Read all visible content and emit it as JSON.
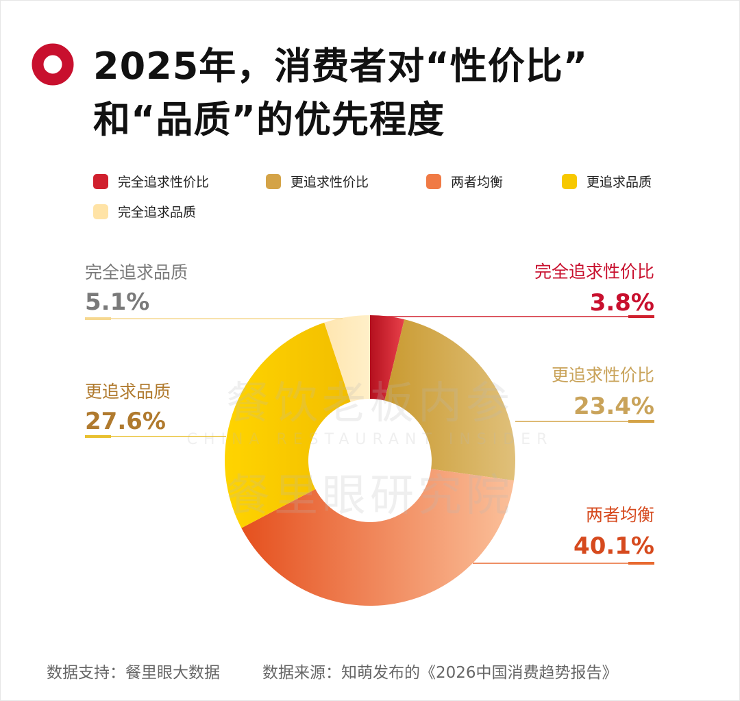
{
  "title": {
    "line1": "2025年，消费者对“性价比”",
    "line2": "和“品质”的优先程度"
  },
  "colors": {
    "accent": "#C8102E",
    "label_red": "#C8102E",
    "label_gold": "#C9A35A",
    "label_orange": "#D64A1E",
    "label_brown": "#B07A2E",
    "label_gray": "#7A7A7A"
  },
  "watermark": {
    "line1": "餐饮老板内参",
    "line2": "CHINA RESTAURANT INSIDER",
    "line3": "餐里眼研究院"
  },
  "chart_data": {
    "type": "pie",
    "donut": true,
    "unit": "%",
    "legend_position": "top",
    "categories": [
      "完全追求性价比",
      "更追求性价比",
      "两者均衡",
      "更追求品质",
      "完全追求品质"
    ],
    "values": [
      3.8,
      23.4,
      40.1,
      27.6,
      5.1
    ],
    "value_labels": [
      "3.8%",
      "23.4%",
      "40.1%",
      "27.6%",
      "5.1%"
    ],
    "colors": [
      "#D0202E",
      "#D4A347",
      "#F07A45",
      "#F7C800",
      "#FFE3A6"
    ]
  },
  "footer": {
    "support": "数据支持：餐里眼大数据",
    "source": "数据来源：知萌发布的《2026中国消费趋势报告》"
  }
}
